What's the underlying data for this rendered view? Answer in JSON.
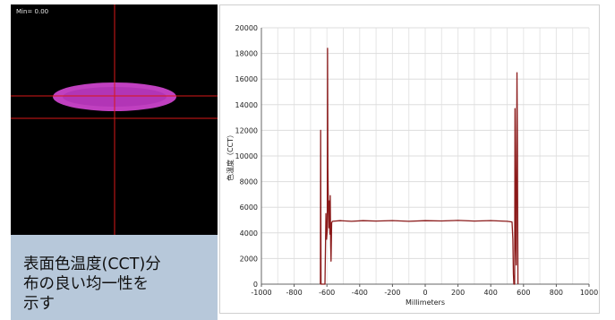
{
  "image_label": "Min= 0.00",
  "caption_lines": [
    "表面色温度(CCT)分",
    "布の良い均一性を",
    "示す"
  ],
  "colors": {
    "magenta": "#c040c0",
    "crosshair": "#d81818",
    "line": "#8b1a1a",
    "caption_bg": "#b7c8da"
  },
  "chart_data": {
    "type": "line",
    "xlabel": "Millimeters",
    "ylabel": "色温度（CCT）",
    "xlim": [
      -1000,
      1000
    ],
    "ylim": [
      0,
      20000
    ],
    "xticks": [
      -1000,
      -800,
      -600,
      -400,
      -200,
      0,
      200,
      400,
      600,
      800,
      1000
    ],
    "yticks": [
      0,
      2000,
      4000,
      6000,
      8000,
      10000,
      12000,
      14000,
      16000,
      18000,
      20000
    ],
    "grid": true,
    "series": [
      {
        "values": [
          [
            -640,
            0
          ],
          [
            -638,
            12000
          ],
          [
            -636,
            0
          ],
          [
            -612,
            0
          ],
          [
            -606,
            5500
          ],
          [
            -602,
            3500
          ],
          [
            -598,
            4200
          ],
          [
            -596,
            18400
          ],
          [
            -594,
            9000
          ],
          [
            -591,
            6100
          ],
          [
            -588,
            4400
          ],
          [
            -585,
            6500
          ],
          [
            -582,
            3900
          ],
          [
            -580,
            6900
          ],
          [
            -577,
            3000
          ],
          [
            -575,
            1800
          ],
          [
            -571,
            4800
          ],
          [
            -566,
            4900
          ],
          [
            -520,
            4950
          ],
          [
            -450,
            4900
          ],
          [
            -380,
            4950
          ],
          [
            -300,
            4920
          ],
          [
            -200,
            4960
          ],
          [
            -100,
            4900
          ],
          [
            0,
            4950
          ],
          [
            100,
            4930
          ],
          [
            200,
            4970
          ],
          [
            300,
            4920
          ],
          [
            400,
            4960
          ],
          [
            500,
            4900
          ],
          [
            530,
            4850
          ],
          [
            535,
            3500
          ],
          [
            538,
            800
          ],
          [
            541,
            0
          ],
          [
            546,
            0
          ],
          [
            548,
            13700
          ],
          [
            550,
            9000
          ],
          [
            553,
            3000
          ],
          [
            556,
            1500
          ],
          [
            560,
            16500
          ],
          [
            563,
            11000
          ],
          [
            566,
            0
          ]
        ]
      }
    ]
  }
}
